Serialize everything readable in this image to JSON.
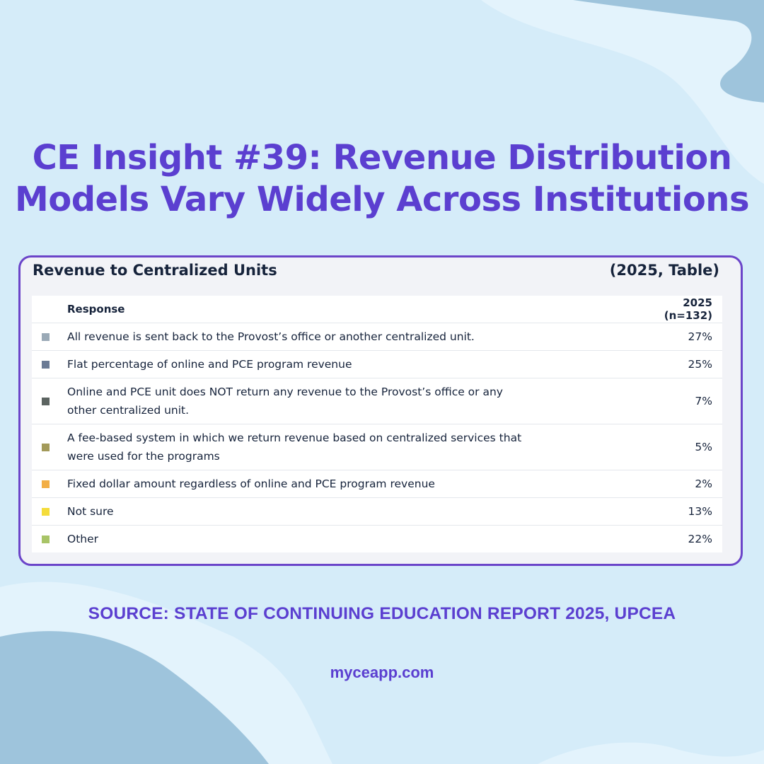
{
  "headline": {
    "line1": "CE Insight #39: Revenue Distribution",
    "line2": "Models Vary Widely Across Institutions"
  },
  "panel": {
    "title": "Revenue to Centralized Units",
    "subtitle": "(2025, Table)"
  },
  "chart_data": {
    "type": "table",
    "title": "Revenue to Centralized Units",
    "subtitle": "(2025, Table)",
    "columns": [
      "Response",
      "2025 (n=132)"
    ],
    "rows": [
      {
        "label": "All revenue is sent back to the Provost’s office or another centralized unit.",
        "value": "27%",
        "color": "#9aa9b6"
      },
      {
        "label": "Flat percentage of online and PCE program revenue",
        "value": "25%",
        "color": "#6b7b95"
      },
      {
        "label": "Online and PCE unit does NOT return any revenue to the Provost’s office or any other centralized unit.",
        "value": "7%",
        "color": "#5c6461"
      },
      {
        "label": "A fee-based system in which we return revenue based on centralized services that were used for the programs",
        "value": "5%",
        "color": "#a39a5a"
      },
      {
        "label": "Fixed dollar amount regardless of online and PCE program revenue",
        "value": "2%",
        "color": "#f2ae45"
      },
      {
        "label": "Not sure",
        "value": "13%",
        "color": "#f4dc3b"
      },
      {
        "label": "Other",
        "value": "22%",
        "color": "#a8c467"
      }
    ]
  },
  "footer": {
    "source": "SOURCE: STATE OF CONTINUING EDUCATION REPORT 2025, UPCEA",
    "site": "myceapp.com"
  },
  "colors": {
    "background": "#d5ecf9",
    "accent": "#5b3fd0",
    "panel_border": "#6b45c9",
    "wave_dark": "#9ec4dc",
    "wave_light": "#e3f3fc"
  }
}
